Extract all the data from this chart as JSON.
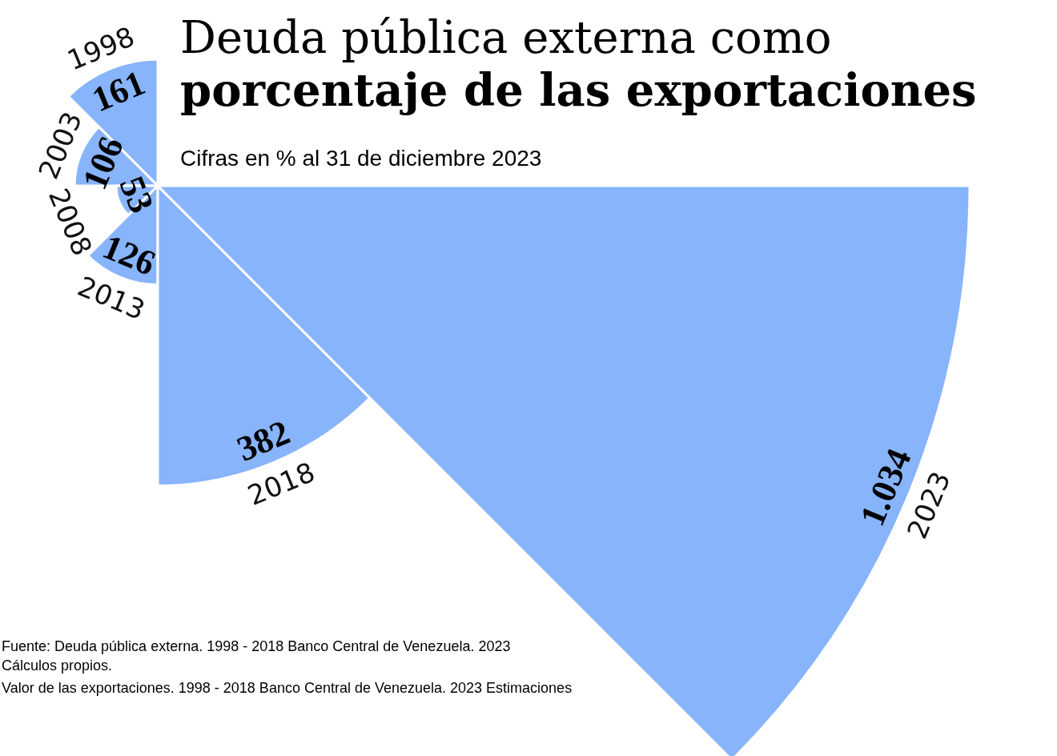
{
  "chart_data": {
    "type": "other",
    "title": "Deuda pública externa como\nporcentaje de las exportaciones",
    "subtitle": "Cifras en % al 31 de diciembre 2023",
    "categories": [
      "1998",
      "2003",
      "2008",
      "2013",
      "2018",
      "2023"
    ],
    "values": [
      161,
      106,
      53,
      126,
      382,
      1034
    ],
    "value_labels": [
      "161",
      "106",
      "53",
      "126",
      "382",
      "1.034"
    ],
    "color": "#87b4fb",
    "annotations": [
      "Fuente: Deuda pública externa. 1998 - 2018 Banco Central de Venezuela. 2023 Cálculos propios.",
      "Valor de las exportaciones. 1998 - 2018 Banco Central de Venezuela. 2023 Estimaciones"
    ]
  }
}
